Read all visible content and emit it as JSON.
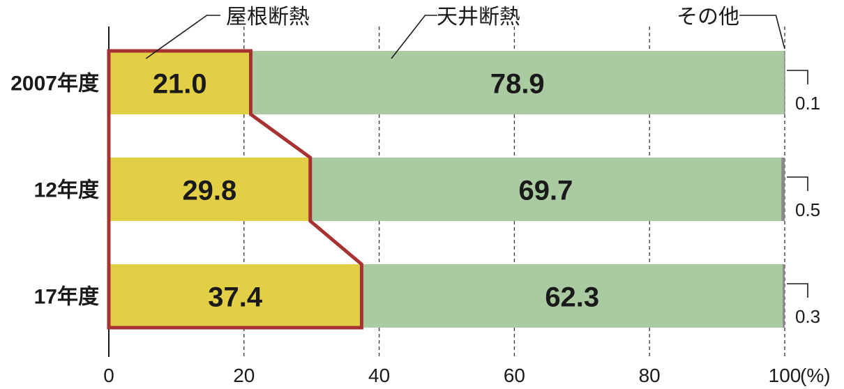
{
  "chart_data": {
    "type": "bar",
    "orientation": "horizontal",
    "stacked": true,
    "categories": [
      "2007年度",
      "12年度",
      "17年度"
    ],
    "series": [
      {
        "name": "屋根断熱",
        "values": [
          21.0,
          29.8,
          37.4
        ],
        "color": "#E3CF45"
      },
      {
        "name": "天井断熱",
        "values": [
          78.9,
          69.7,
          62.3
        ],
        "color": "#AACAA1"
      },
      {
        "name": "その他",
        "values": [
          0.1,
          0.5,
          0.3
        ],
        "color": "#8A8A8A"
      }
    ],
    "value_labels": {
      "series_0": [
        "21.0",
        "29.8",
        "37.4"
      ],
      "series_1": [
        "78.9",
        "69.7",
        "62.3"
      ],
      "series_2": [
        "0.1",
        "0.5",
        "0.3"
      ]
    },
    "xlim": [
      0,
      100
    ],
    "x_ticks": [
      0,
      20,
      40,
      60,
      80,
      100
    ],
    "x_tick_labels": [
      "0",
      "20",
      "40",
      "60",
      "80",
      "100"
    ],
    "x_unit": "(%)",
    "grid": "dashed vertical",
    "highlight_color": "#A83232",
    "title": "",
    "xlabel": "",
    "ylabel": ""
  }
}
